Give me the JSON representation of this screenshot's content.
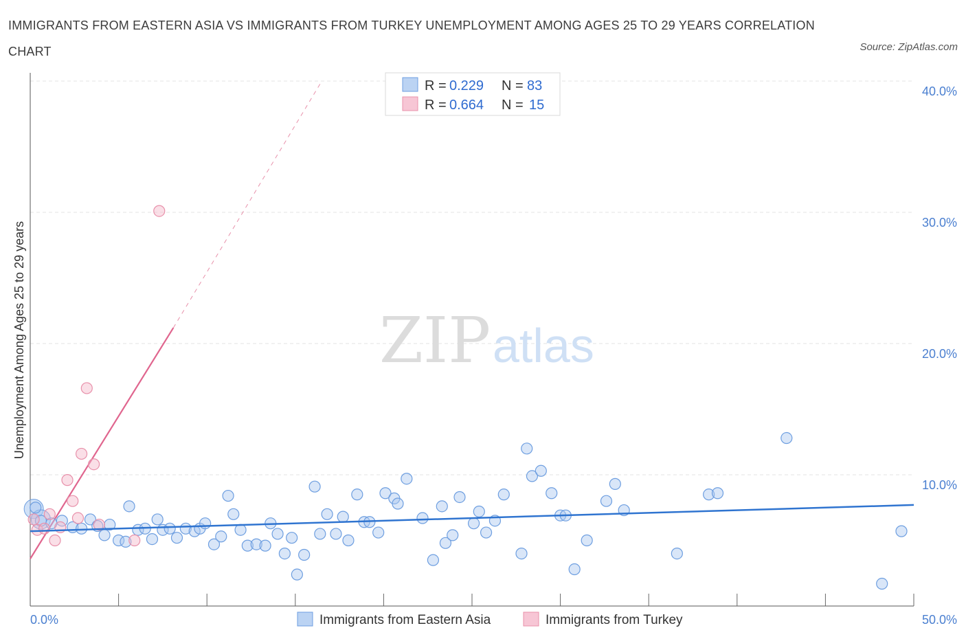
{
  "title": "IMMIGRANTS FROM EASTERN ASIA VS IMMIGRANTS FROM TURKEY UNEMPLOYMENT AMONG AGES 25 TO 29 YEARS CORRELATION CHART",
  "source": "Source: ZipAtlas.com",
  "watermark": {
    "zip": "ZIP",
    "atlas": "atlas"
  },
  "colors": {
    "blue_fill": "#aac8f0",
    "blue_stroke": "#6d9ee0",
    "blue_line": "#2f74d0",
    "pink_fill": "#f5b8ca",
    "pink_stroke": "#e890aa",
    "pink_line": "#e0658e",
    "tick_text": "#4a7fd0"
  },
  "chart_data": {
    "type": "scatter",
    "title": "IMMIGRANTS FROM EASTERN ASIA VS IMMIGRANTS FROM TURKEY UNEMPLOYMENT AMONG AGES 25 TO 29 YEARS CORRELATION CHART",
    "xlabel": "",
    "ylabel": "Unemployment Among Ages 25 to 29 years",
    "xlim": [
      0,
      50
    ],
    "ylim": [
      0,
      40
    ],
    "x_tick_labels": [
      "0.0%",
      "50.0%"
    ],
    "y_ticks": [
      10,
      20,
      30,
      40
    ],
    "y_tick_labels": [
      "10.0%",
      "20.0%",
      "30.0%",
      "40.0%"
    ],
    "legend_stats": [
      {
        "r_label": "R =",
        "r": "0.229",
        "n_label": "N =",
        "n": "83"
      },
      {
        "r_label": "R =",
        "r": "0.664",
        "n_label": "N =",
        "n": "15"
      }
    ],
    "series": [
      {
        "name": "Immigrants from Eastern Asia",
        "trend": {
          "x0": 0,
          "y0": 5.7,
          "x1": 50,
          "y1": 7.7
        },
        "points": [
          [
            0.3,
            7.5
          ],
          [
            0.6,
            6.5
          ],
          [
            1.2,
            6.3
          ],
          [
            1.8,
            6.5
          ],
          [
            2.4,
            6.0
          ],
          [
            2.9,
            5.9
          ],
          [
            3.4,
            6.6
          ],
          [
            3.8,
            6.1
          ],
          [
            4.2,
            5.4
          ],
          [
            4.5,
            6.2
          ],
          [
            5.0,
            5.0
          ],
          [
            5.4,
            4.9
          ],
          [
            5.6,
            7.6
          ],
          [
            6.1,
            5.8
          ],
          [
            6.5,
            5.9
          ],
          [
            6.9,
            5.1
          ],
          [
            7.2,
            6.6
          ],
          [
            7.5,
            5.8
          ],
          [
            7.9,
            5.9
          ],
          [
            8.3,
            5.2
          ],
          [
            8.8,
            5.9
          ],
          [
            9.3,
            5.7
          ],
          [
            9.6,
            5.9
          ],
          [
            9.9,
            6.3
          ],
          [
            10.4,
            4.7
          ],
          [
            10.8,
            5.3
          ],
          [
            11.2,
            8.4
          ],
          [
            11.5,
            7.0
          ],
          [
            11.9,
            5.8
          ],
          [
            12.3,
            4.6
          ],
          [
            12.8,
            4.7
          ],
          [
            13.3,
            4.6
          ],
          [
            13.6,
            6.3
          ],
          [
            14.0,
            5.5
          ],
          [
            14.4,
            4.0
          ],
          [
            14.8,
            5.2
          ],
          [
            15.1,
            2.4
          ],
          [
            15.5,
            3.9
          ],
          [
            16.1,
            9.1
          ],
          [
            16.4,
            5.5
          ],
          [
            16.8,
            7.0
          ],
          [
            17.3,
            5.5
          ],
          [
            17.7,
            6.8
          ],
          [
            18.0,
            5.0
          ],
          [
            18.5,
            8.5
          ],
          [
            18.9,
            6.4
          ],
          [
            19.2,
            6.4
          ],
          [
            19.7,
            5.6
          ],
          [
            20.1,
            8.6
          ],
          [
            20.6,
            8.2
          ],
          [
            20.8,
            7.8
          ],
          [
            21.3,
            9.7
          ],
          [
            22.2,
            6.7
          ],
          [
            22.8,
            3.5
          ],
          [
            23.3,
            7.6
          ],
          [
            23.5,
            4.8
          ],
          [
            23.9,
            5.4
          ],
          [
            24.3,
            8.3
          ],
          [
            25.1,
            6.3
          ],
          [
            25.4,
            7.2
          ],
          [
            25.8,
            5.6
          ],
          [
            26.3,
            6.5
          ],
          [
            26.8,
            8.5
          ],
          [
            27.8,
            4.0
          ],
          [
            28.1,
            12.0
          ],
          [
            28.4,
            9.9
          ],
          [
            28.9,
            10.3
          ],
          [
            29.5,
            8.6
          ],
          [
            30.0,
            6.9
          ],
          [
            30.3,
            6.9
          ],
          [
            30.8,
            2.8
          ],
          [
            31.5,
            5.0
          ],
          [
            32.6,
            8.0
          ],
          [
            33.1,
            9.3
          ],
          [
            33.6,
            7.3
          ],
          [
            36.6,
            4.0
          ],
          [
            38.4,
            8.5
          ],
          [
            38.9,
            8.6
          ],
          [
            42.8,
            12.8
          ],
          [
            48.2,
            1.7
          ],
          [
            49.3,
            5.7
          ]
        ],
        "large_points": [
          [
            0.2,
            7.4
          ],
          [
            0.6,
            6.6
          ]
        ]
      },
      {
        "name": "Immigrants from Turkey",
        "trend_solid": {
          "x0": 0,
          "y0": 3.6,
          "x1": 8.1,
          "y1": 21.2
        },
        "trend_dashed": {
          "x0": 8.1,
          "y0": 21.2,
          "x1": 16.5,
          "y1": 40
        },
        "points": [
          [
            0.4,
            5.8
          ],
          [
            0.8,
            5.9
          ],
          [
            1.1,
            7.0
          ],
          [
            1.4,
            5.0
          ],
          [
            1.7,
            6.0
          ],
          [
            2.1,
            9.6
          ],
          [
            2.4,
            8.0
          ],
          [
            2.7,
            6.7
          ],
          [
            2.9,
            11.6
          ],
          [
            3.2,
            16.6
          ],
          [
            3.6,
            10.8
          ],
          [
            3.9,
            6.2
          ],
          [
            5.9,
            5.0
          ],
          [
            7.3,
            30.1
          ],
          [
            0.2,
            6.6
          ]
        ]
      }
    ]
  }
}
